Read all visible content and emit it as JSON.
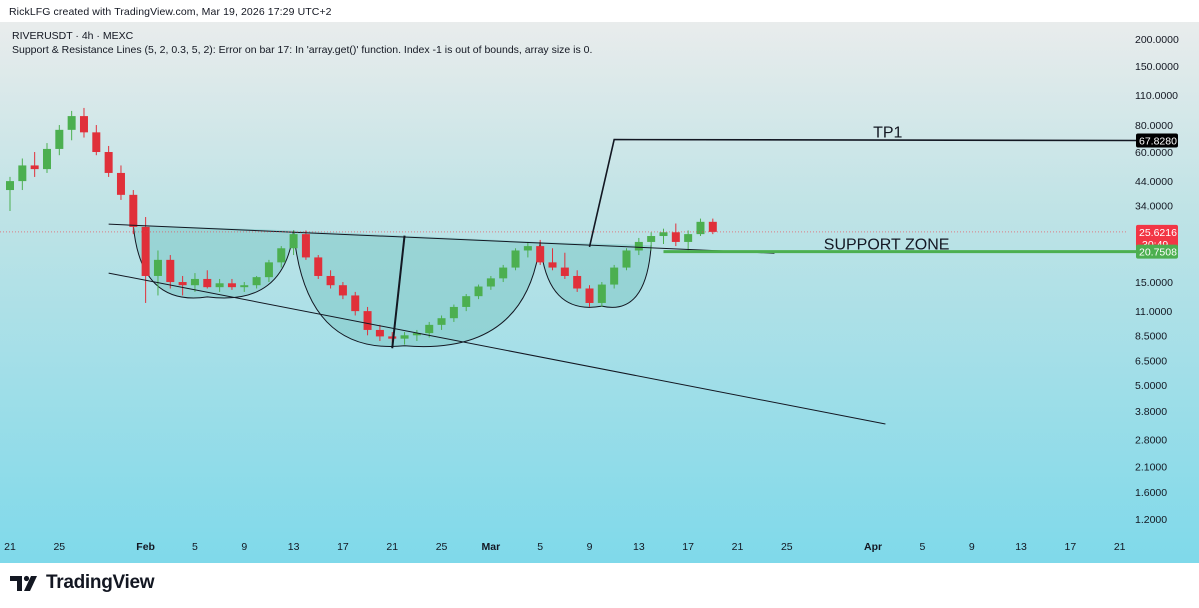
{
  "header": {
    "credit": "RickLFG created with TradingView.com, Mar 19, 2026 17:29 UTC+2"
  },
  "legend": {
    "symbol": "RIVERUSDT · 4h · MEXC",
    "indicator_error": "Support & Resistance Lines (5, 2, 0.3, 5, 2): Error on bar 17: In 'array.get()' function. Index -1 is out of bounds, array size is 0."
  },
  "footer": {
    "brand": "TradingView"
  },
  "colors": {
    "up": "#4caf50",
    "down": "#e0303a",
    "support_line": "#4caf50",
    "price_badge": "#f23645",
    "target_badge": "#000000",
    "support_badge": "#4caf50",
    "pattern_fill": "#7fc8c6",
    "bg_top": "#e9ecec",
    "bg_bottom": "#7fd9ea"
  },
  "chart_data": {
    "type": "candlestick",
    "scale": "log",
    "ylim": [
      1.0,
      240.0
    ],
    "y_ticks": [
      "200.0000",
      "150.0000",
      "110.0000",
      "80.0000",
      "60.0000",
      "44.0000",
      "34.0000",
      "15.0000",
      "11.0000",
      "8.5000",
      "6.5000",
      "5.0000",
      "3.8000",
      "2.8000",
      "2.1000",
      "1.6000",
      "1.2000"
    ],
    "x_ticks": [
      "21",
      "25",
      "Feb",
      "5",
      "9",
      "13",
      "17",
      "21",
      "25",
      "Mar",
      "5",
      "9",
      "13",
      "17",
      "21",
      "25",
      "Apr",
      "5",
      "9",
      "13",
      "17",
      "21"
    ],
    "x_ticks_bold": [
      "Feb",
      "Mar",
      "Apr"
    ],
    "x_range": [
      "Jan 21",
      "Apr 21"
    ],
    "price_labels": {
      "target": "67.8280",
      "current": "25.6216",
      "countdown": "30:49",
      "support": "20.7508"
    },
    "annotations": {
      "tp1": "TP1",
      "support_zone": "SUPPORT ZONE"
    },
    "candles": [
      {
        "d": "Jan 21",
        "o": 40,
        "h": 46,
        "l": 32,
        "c": 44
      },
      {
        "d": "Jan 22",
        "o": 44,
        "h": 56,
        "l": 40,
        "c": 52
      },
      {
        "d": "Jan 23",
        "o": 52,
        "h": 60,
        "l": 46,
        "c": 50
      },
      {
        "d": "Jan 24",
        "o": 50,
        "h": 66,
        "l": 48,
        "c": 62
      },
      {
        "d": "Jan 25",
        "o": 62,
        "h": 80,
        "l": 58,
        "c": 76
      },
      {
        "d": "Jan 26",
        "o": 76,
        "h": 93,
        "l": 68,
        "c": 88
      },
      {
        "d": "Jan 27",
        "o": 88,
        "h": 96,
        "l": 70,
        "c": 74
      },
      {
        "d": "Jan 28",
        "o": 74,
        "h": 80,
        "l": 58,
        "c": 60
      },
      {
        "d": "Jan 29",
        "o": 60,
        "h": 64,
        "l": 46,
        "c": 48
      },
      {
        "d": "Jan 30",
        "o": 48,
        "h": 52,
        "l": 36,
        "c": 38
      },
      {
        "d": "Jan 31",
        "o": 38,
        "h": 40,
        "l": 25,
        "c": 27
      },
      {
        "d": "Feb 1",
        "o": 27,
        "h": 30,
        "l": 12,
        "c": 16
      },
      {
        "d": "Feb 2",
        "o": 16,
        "h": 21,
        "l": 13,
        "c": 19
      },
      {
        "d": "Feb 3",
        "o": 19,
        "h": 20,
        "l": 14,
        "c": 15
      },
      {
        "d": "Feb 4",
        "o": 15,
        "h": 16,
        "l": 13,
        "c": 14.5
      },
      {
        "d": "Feb 5",
        "o": 14.5,
        "h": 16.5,
        "l": 13.5,
        "c": 15.5
      },
      {
        "d": "Feb 6",
        "o": 15.5,
        "h": 17,
        "l": 14,
        "c": 14.2
      },
      {
        "d": "Feb 7",
        "o": 14.2,
        "h": 15.5,
        "l": 13.5,
        "c": 14.8
      },
      {
        "d": "Feb 8",
        "o": 14.8,
        "h": 15.5,
        "l": 13.8,
        "c": 14.2
      },
      {
        "d": "Feb 9",
        "o": 14.2,
        "h": 15,
        "l": 13.5,
        "c": 14.5
      },
      {
        "d": "Feb 10",
        "o": 14.5,
        "h": 16,
        "l": 14,
        "c": 15.8
      },
      {
        "d": "Feb 11",
        "o": 15.8,
        "h": 19,
        "l": 15,
        "c": 18.5
      },
      {
        "d": "Feb 12",
        "o": 18.5,
        "h": 22,
        "l": 17.5,
        "c": 21.5
      },
      {
        "d": "Feb 13",
        "o": 21.5,
        "h": 26,
        "l": 20,
        "c": 25
      },
      {
        "d": "Feb 14",
        "o": 25,
        "h": 26,
        "l": 19,
        "c": 19.5
      },
      {
        "d": "Feb 15",
        "o": 19.5,
        "h": 20,
        "l": 15.5,
        "c": 16
      },
      {
        "d": "Feb 16",
        "o": 16,
        "h": 17,
        "l": 14,
        "c": 14.5
      },
      {
        "d": "Feb 17",
        "o": 14.5,
        "h": 15,
        "l": 12.5,
        "c": 13
      },
      {
        "d": "Feb 18",
        "o": 13,
        "h": 13.5,
        "l": 10.5,
        "c": 11
      },
      {
        "d": "Feb 19",
        "o": 11,
        "h": 11.5,
        "l": 8.5,
        "c": 9
      },
      {
        "d": "Feb 20",
        "o": 9,
        "h": 9.5,
        "l": 8,
        "c": 8.4
      },
      {
        "d": "Feb 21",
        "o": 8.4,
        "h": 8.8,
        "l": 7.8,
        "c": 8.2
      },
      {
        "d": "Feb 22",
        "o": 8.2,
        "h": 8.8,
        "l": 7.7,
        "c": 8.5
      },
      {
        "d": "Feb 23",
        "o": 8.5,
        "h": 9,
        "l": 8,
        "c": 8.7
      },
      {
        "d": "Feb 24",
        "o": 8.7,
        "h": 9.8,
        "l": 8.3,
        "c": 9.5
      },
      {
        "d": "Feb 25",
        "o": 9.5,
        "h": 10.5,
        "l": 9,
        "c": 10.2
      },
      {
        "d": "Feb 26",
        "o": 10.2,
        "h": 11.8,
        "l": 9.8,
        "c": 11.5
      },
      {
        "d": "Feb 27",
        "o": 11.5,
        "h": 13.2,
        "l": 11,
        "c": 12.9
      },
      {
        "d": "Feb 28",
        "o": 12.9,
        "h": 14.6,
        "l": 12.5,
        "c": 14.3
      },
      {
        "d": "Mar 1",
        "o": 14.3,
        "h": 16,
        "l": 13.8,
        "c": 15.6
      },
      {
        "d": "Mar 2",
        "o": 15.6,
        "h": 18,
        "l": 15,
        "c": 17.5
      },
      {
        "d": "Mar 3",
        "o": 17.5,
        "h": 21.5,
        "l": 17,
        "c": 21
      },
      {
        "d": "Mar 4",
        "o": 21,
        "h": 23,
        "l": 19.5,
        "c": 22
      },
      {
        "d": "Mar 5",
        "o": 22,
        "h": 23.5,
        "l": 18,
        "c": 18.5
      },
      {
        "d": "Mar 6",
        "o": 18.5,
        "h": 21.5,
        "l": 17,
        "c": 17.5
      },
      {
        "d": "Mar 7",
        "o": 17.5,
        "h": 20.5,
        "l": 15.5,
        "c": 16
      },
      {
        "d": "Mar 8",
        "o": 16,
        "h": 17,
        "l": 13.5,
        "c": 14
      },
      {
        "d": "Mar 9",
        "o": 14,
        "h": 14.5,
        "l": 11.5,
        "c": 12
      },
      {
        "d": "Mar 10",
        "o": 12,
        "h": 15,
        "l": 11.5,
        "c": 14.6
      },
      {
        "d": "Mar 11",
        "o": 14.6,
        "h": 18,
        "l": 14,
        "c": 17.5
      },
      {
        "d": "Mar 12",
        "o": 17.5,
        "h": 21.5,
        "l": 17,
        "c": 21
      },
      {
        "d": "Mar 13",
        "o": 21,
        "h": 24,
        "l": 20,
        "c": 23
      },
      {
        "d": "Mar 14",
        "o": 23,
        "h": 25.5,
        "l": 21,
        "c": 24.5
      },
      {
        "d": "Mar 15",
        "o": 24.5,
        "h": 26.5,
        "l": 22.5,
        "c": 25.5
      },
      {
        "d": "Mar 16",
        "o": 25.5,
        "h": 28,
        "l": 22,
        "c": 23
      },
      {
        "d": "Mar 17",
        "o": 23,
        "h": 26,
        "l": 20.5,
        "c": 25
      },
      {
        "d": "Mar 18",
        "o": 25,
        "h": 29.5,
        "l": 24.5,
        "c": 28.5
      },
      {
        "d": "Mar 19",
        "o": 28.5,
        "h": 29.5,
        "l": 25,
        "c": 25.6
      }
    ]
  }
}
